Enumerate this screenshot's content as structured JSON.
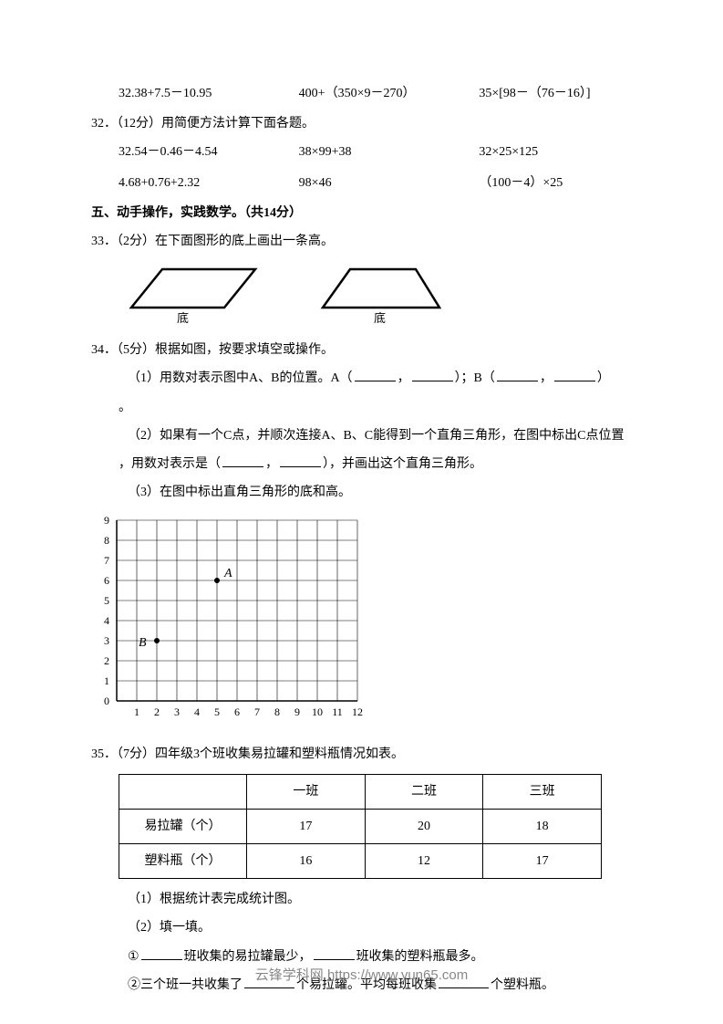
{
  "q31_row": {
    "a": "32.38+7.5－10.95",
    "b": "400+（350×9－270）",
    "c": "35×[98－（76－16）]"
  },
  "q32": {
    "title": "32．（12分）用简便方法计算下面各题。",
    "row1": {
      "a": "32.54－0.46－4.54",
      "b": "38×99+38",
      "c": "32×25×125"
    },
    "row2": {
      "a": "4.68+0.76+2.32",
      "b": "98×46",
      "c": "（100－4）×25"
    }
  },
  "section5": "五、动手操作，实践数学。（共14分）",
  "q33": {
    "title": "33．（2分）在下面图形的底上画出一条高。",
    "labels": {
      "bottom1": "底",
      "bottom2": "底"
    }
  },
  "q34": {
    "title": "34．（5分）根据如图，按要求填空或操作。",
    "p1_a": "（1）用数对表示图中A、B的位置。A（",
    "p1_b": "，",
    "p1_c": "）；B（",
    "p1_d": "，",
    "p1_e": "）",
    "p1_end": "。",
    "p2_a": "（2）如果有一个C点，并顺次连接A、B、C能得到一个直角三角形，在图中标出C点位置",
    "p2_b": "，用数对表示是（",
    "p2_c": "，",
    "p2_d": "），并画出这个直角三角形。",
    "p3": "（3）在图中标出直角三角形的底和高。",
    "chart": {
      "x_max": 12,
      "y_max": 9,
      "cell": 22,
      "points": {
        "A": {
          "x": 5,
          "y": 6,
          "label": "A"
        },
        "B": {
          "x": 2,
          "y": 3,
          "label": "B"
        }
      },
      "axis_color": "#000000",
      "grid_color": "#000000"
    }
  },
  "q35": {
    "title": "35．（7分）四年级3个班收集易拉罐和塑料瓶情况如表。",
    "table": {
      "headers": [
        "",
        "一班",
        "二班",
        "三班"
      ],
      "rows": [
        [
          "易拉罐（个）",
          "17",
          "20",
          "18"
        ],
        [
          "塑料瓶（个）",
          "16",
          "12",
          "17"
        ]
      ]
    },
    "p1": "（1）根据统计表完成统计图。",
    "p2": "（2）填一填。",
    "p3_a": "①",
    "p3_b": "班收集的易拉罐最少，",
    "p3_c": "班收集的塑料瓶最多。",
    "p4_a": "②三个班一共收集了",
    "p4_b": "个易拉罐。平均每班收集",
    "p4_c": "个塑料瓶。"
  },
  "footer": "云锋学科网 https://www.yun65.com"
}
